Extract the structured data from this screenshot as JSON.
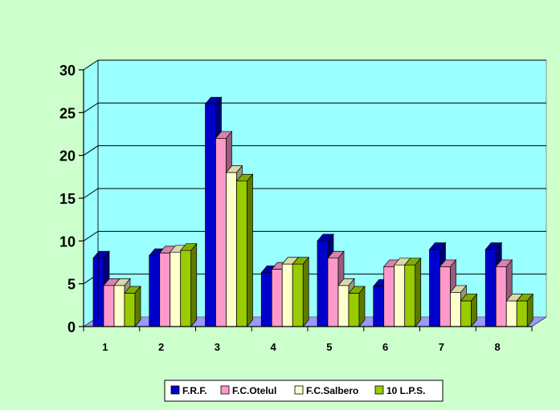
{
  "chart_data": {
    "type": "bar",
    "categories": [
      "1",
      "2",
      "3",
      "4",
      "5",
      "6",
      "7",
      "8"
    ],
    "series": [
      {
        "name": "F.R.F.",
        "color": "#0000cc",
        "values": [
          8,
          8.3,
          26,
          6.3,
          10,
          4.7,
          9,
          9
        ]
      },
      {
        "name": "F.C.Otelul",
        "color": "#ff99cc",
        "values": [
          4.8,
          8.6,
          22,
          6.7,
          8,
          7,
          7,
          7
        ]
      },
      {
        "name": "F.C.Salbero",
        "color": "#ffffcc",
        "values": [
          4.8,
          8.7,
          18,
          7.3,
          4.8,
          7.2,
          4,
          3
        ]
      },
      {
        "name": "10 L.P.S.",
        "color": "#99cc00",
        "values": [
          3.9,
          8.9,
          17,
          7.3,
          3.9,
          7.2,
          3,
          3
        ]
      }
    ],
    "ylim": [
      0,
      30
    ],
    "yticks": [
      0,
      5,
      10,
      15,
      20,
      25,
      30
    ],
    "grid": true,
    "legend": "bottom",
    "plot_background": "#99ffff",
    "floor_color": "#9999ff",
    "page_background": "#ccffcc"
  }
}
